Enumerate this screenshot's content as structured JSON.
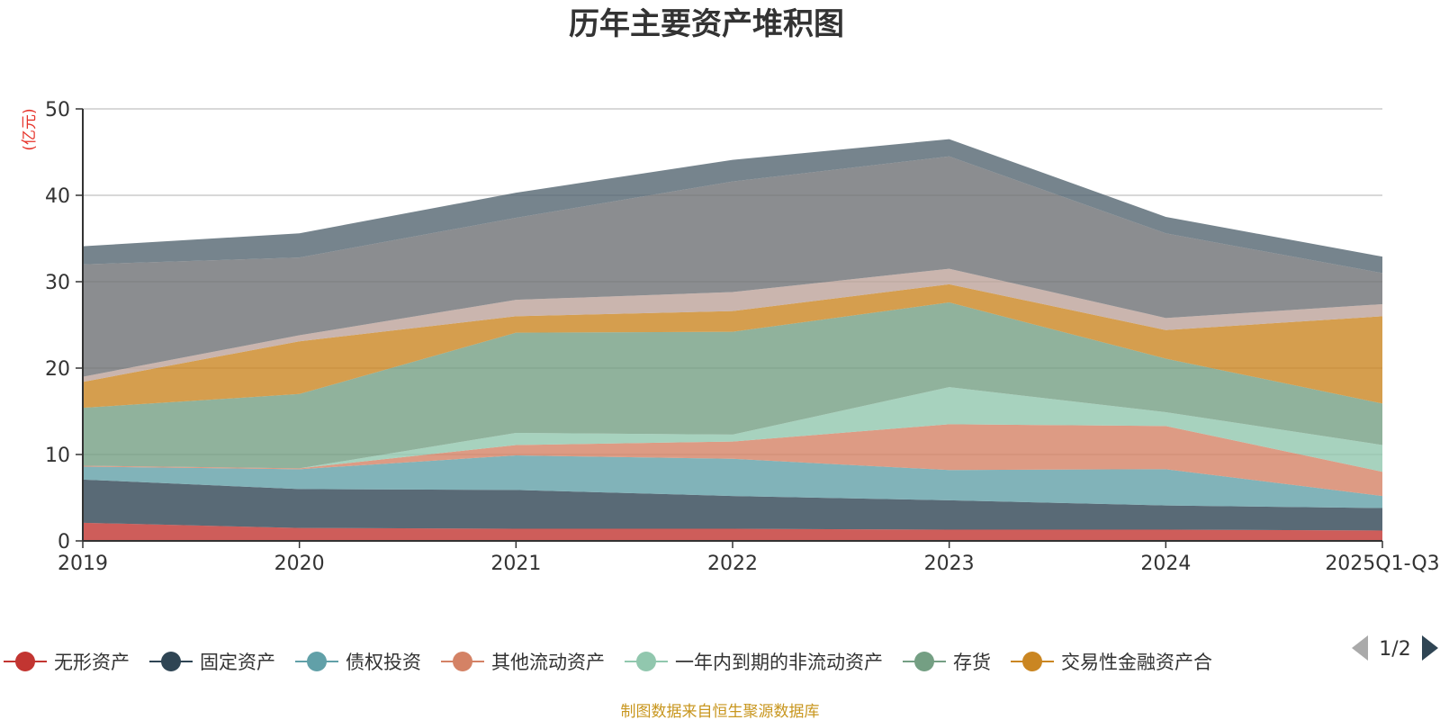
{
  "chart_data": {
    "type": "area",
    "stacked": true,
    "title": "历年主要资产堆积图",
    "ylabel": "(亿元)",
    "xlabel": "",
    "ylim": [
      0,
      50
    ],
    "yticks": [
      0,
      10,
      20,
      30,
      40,
      50
    ],
    "grid": true,
    "legend_position": "bottom",
    "legend_page": "1/2",
    "source": "制图数据来自恒生聚源数据库",
    "categories": [
      "2019",
      "2020",
      "2021",
      "2022",
      "2023",
      "2024",
      "2025Q1-Q3"
    ],
    "series": [
      {
        "name": "无形资产",
        "color": "#c23531",
        "values": [
          2.1,
          1.5,
          1.4,
          1.4,
          1.3,
          1.3,
          1.2
        ],
        "in_legend": true
      },
      {
        "name": "固定资产",
        "color": "#2f4554",
        "values": [
          5.0,
          4.5,
          4.5,
          3.8,
          3.4,
          2.8,
          2.6
        ],
        "in_legend": true
      },
      {
        "name": "债权投资",
        "color": "#61a0a8",
        "values": [
          1.5,
          2.3,
          4.0,
          4.3,
          3.5,
          4.2,
          1.4
        ],
        "in_legend": true
      },
      {
        "name": "其他流动资产",
        "color": "#d48265",
        "values": [
          0.1,
          0.1,
          1.2,
          2.0,
          5.3,
          5.0,
          2.8
        ],
        "in_legend": true
      },
      {
        "name": "一年内到期的非流动资产",
        "color": "#91c7ae",
        "values": [
          0.0,
          0.0,
          1.4,
          0.8,
          4.3,
          1.6,
          3.1
        ],
        "in_legend": true
      },
      {
        "name": "存货",
        "color": "#749f83",
        "values": [
          6.7,
          8.6,
          11.6,
          11.9,
          9.8,
          6.2,
          4.8
        ],
        "in_legend": true
      },
      {
        "name": "交易性金融资产合",
        "color": "#ca8622",
        "values": [
          3.0,
          6.1,
          1.9,
          2.4,
          2.1,
          3.3,
          10.1
        ],
        "in_legend": true
      },
      {
        "name": "",
        "color": "#bda29a",
        "values": [
          0.6,
          0.7,
          1.9,
          2.2,
          1.8,
          1.4,
          1.4
        ],
        "in_legend": false
      },
      {
        "name": "",
        "color": "#6e7074",
        "values": [
          13.0,
          9.0,
          9.5,
          12.8,
          13.0,
          9.8,
          3.6
        ],
        "in_legend": false
      },
      {
        "name": "",
        "color": "#546570",
        "values": [
          2.1,
          2.8,
          2.9,
          2.5,
          2.0,
          1.9,
          1.9
        ],
        "in_legend": false
      }
    ]
  }
}
